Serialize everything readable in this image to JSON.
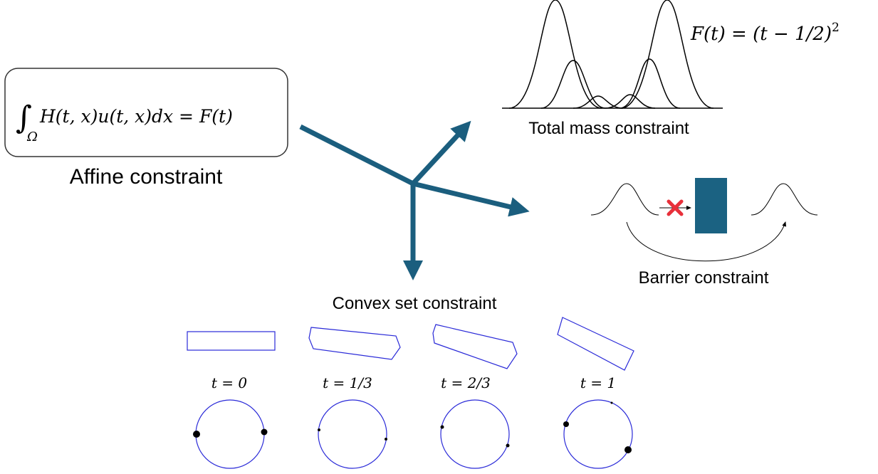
{
  "affine": {
    "integral": "∫",
    "domain": "Ω",
    "formula": "H(t, x)u(t, x)dx = F(t)",
    "label": "Affine constraint"
  },
  "total_mass": {
    "formula": "F(t) = (t − 1/2)",
    "exponent": "2",
    "label": "Total mass constraint"
  },
  "barrier": {
    "label": "Barrier constraint"
  },
  "convex_set": {
    "label": "Convex set constraint",
    "times": [
      "t = 0",
      "t = 1/3",
      "t = 2/3",
      "t = 1"
    ]
  }
}
